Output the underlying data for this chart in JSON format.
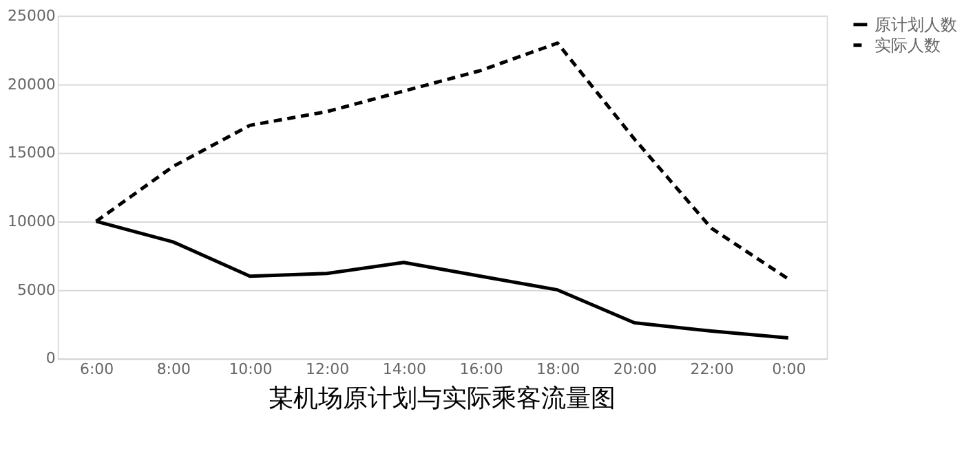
{
  "chart_data": {
    "type": "line",
    "title": "某机场原计划与实际乘客流量图",
    "categories": [
      "6:00",
      "8:00",
      "10:00",
      "12:00",
      "14:00",
      "16:00",
      "18:00",
      "20:00",
      "22:00",
      "0:00"
    ],
    "series": [
      {
        "name": "原计划人数",
        "color": "#000000",
        "line_style": "solid",
        "values": [
          10000,
          8500,
          6000,
          6200,
          7000,
          6000,
          5000,
          2600,
          2000,
          1500
        ]
      },
      {
        "name": "实际人数",
        "color": "#000000",
        "line_style": "dashed",
        "values": [
          10000,
          14000,
          17000,
          18000,
          19500,
          21000,
          23000,
          16000,
          9500,
          5800
        ]
      }
    ],
    "ylim": [
      0,
      25000
    ],
    "yticks": [
      0,
      5000,
      10000,
      15000,
      20000,
      25000
    ],
    "grid": "y",
    "legend": "right",
    "marker": "none"
  }
}
